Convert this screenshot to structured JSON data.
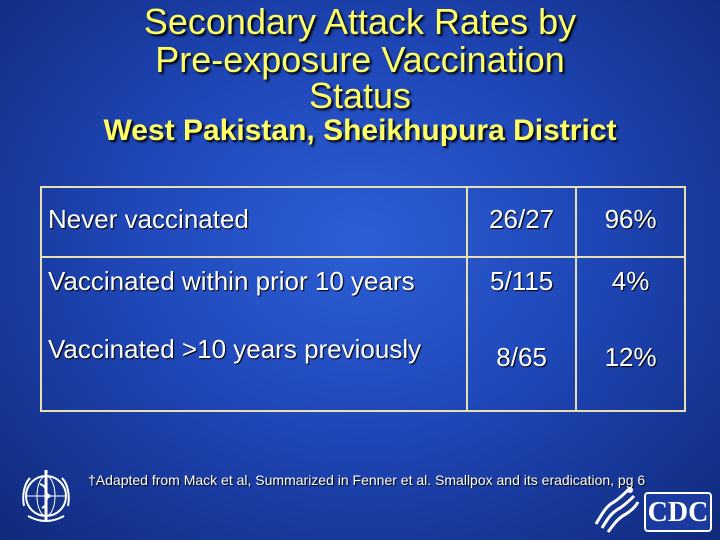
{
  "slide": {
    "title_lines": [
      "Secondary Attack Rates by",
      "Pre-exposure Vaccination",
      "Status"
    ],
    "subtitle": "West Pakistan, Sheikhupura District",
    "table": {
      "rows": [
        {
          "label": "Never vaccinated",
          "fraction": "26/27",
          "percent": "96%"
        },
        {
          "label": "Vaccinated within prior 10 years",
          "fraction": "5/115",
          "percent": "4%"
        },
        {
          "label": "Vaccinated >10 years previously",
          "fraction": "8/65",
          "percent": "12%"
        }
      ]
    },
    "footnote": "†Adapted from Mack et al, Summarized in Fenner et al. Smallpox and its eradication, pg 6",
    "logos": {
      "cdc_text": "CDC"
    },
    "colors": {
      "title": "#ffff66",
      "background": "#1f47b8",
      "text": "#ffffff",
      "border": "#e8e0b0"
    }
  }
}
